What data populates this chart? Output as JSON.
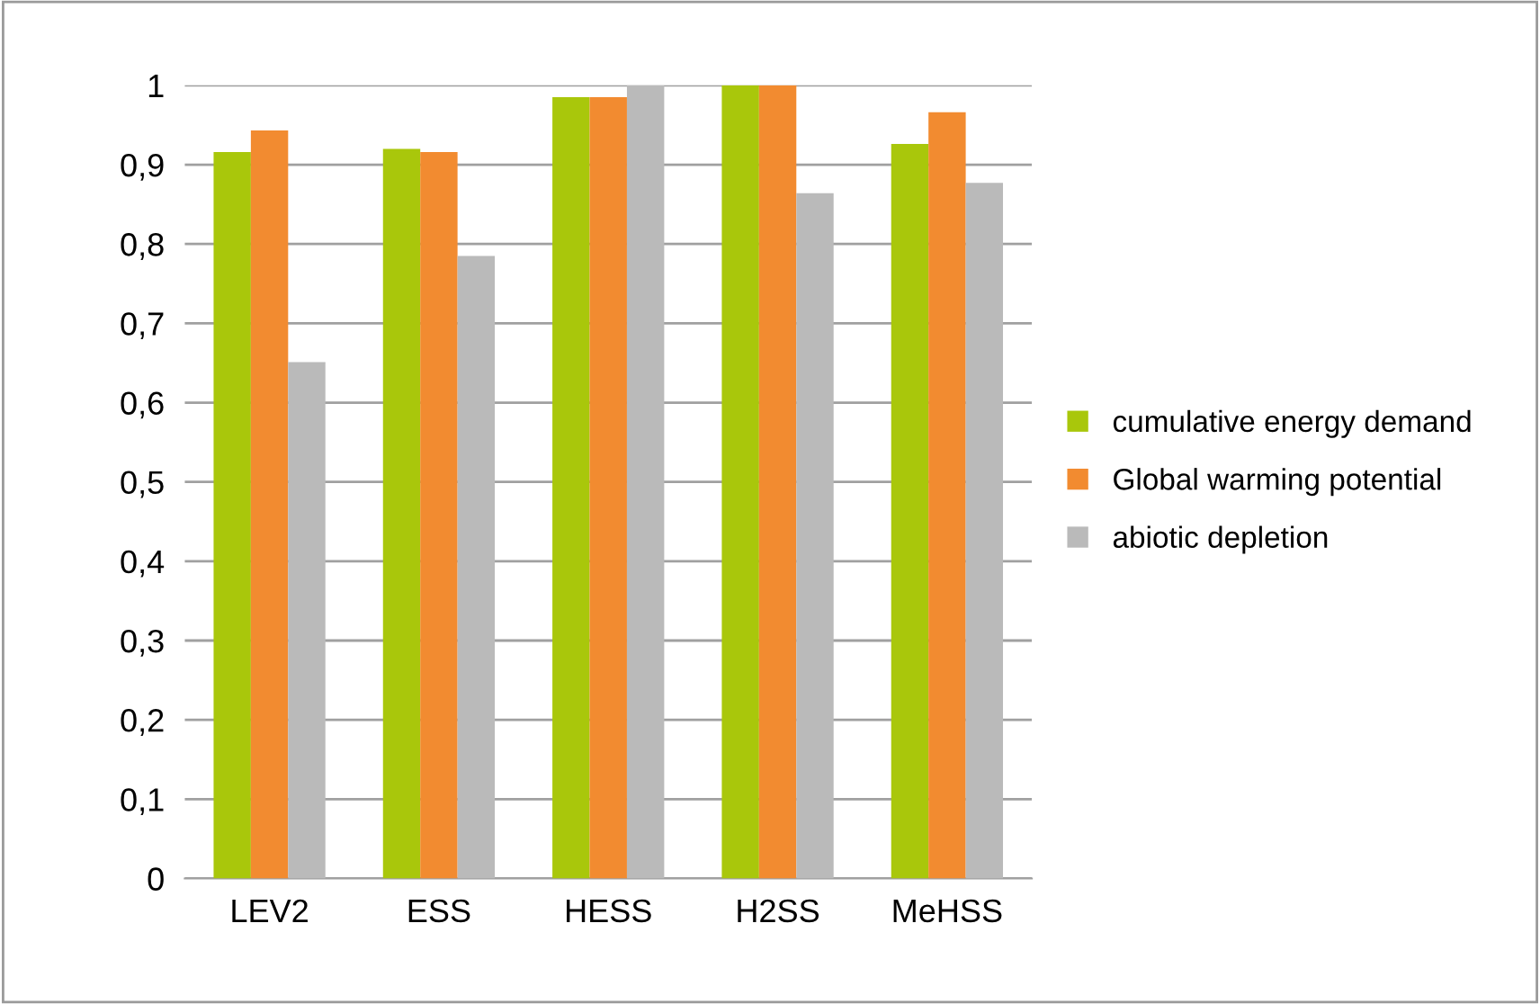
{
  "chart_data": {
    "type": "bar",
    "categories": [
      "LEV2",
      "ESS",
      "HESS",
      "H2SS",
      "MeHSS"
    ],
    "series": [
      {
        "name": "cumulative energy demand",
        "color": "#a9c70b",
        "values": [
          0.916,
          0.92,
          0.985,
          1.0,
          0.926
        ]
      },
      {
        "name": "Global warming potential",
        "color": "#f28b30",
        "values": [
          0.943,
          0.916,
          0.985,
          1.0,
          0.966
        ]
      },
      {
        "name": "abiotic depletion",
        "color": "#bababa",
        "values": [
          0.651,
          0.785,
          1.0,
          0.864,
          0.877
        ]
      }
    ],
    "ylim": [
      0,
      1
    ],
    "yticks": [
      0,
      {
        "value": 0.1,
        "label": "0,1"
      },
      {
        "value": 0.2,
        "label": "0,2"
      },
      {
        "value": 0.3,
        "label": "0,3"
      },
      {
        "value": 0.4,
        "label": "0,4"
      },
      {
        "value": 0.5,
        "label": "0,5"
      },
      {
        "value": 0.6,
        "label": "0,6"
      },
      {
        "value": 0.7,
        "label": "0,7"
      },
      {
        "value": 0.8,
        "label": "0,8"
      },
      {
        "value": 0.9,
        "label": "0,9"
      },
      1
    ],
    "grid": "y",
    "legend": "right"
  }
}
